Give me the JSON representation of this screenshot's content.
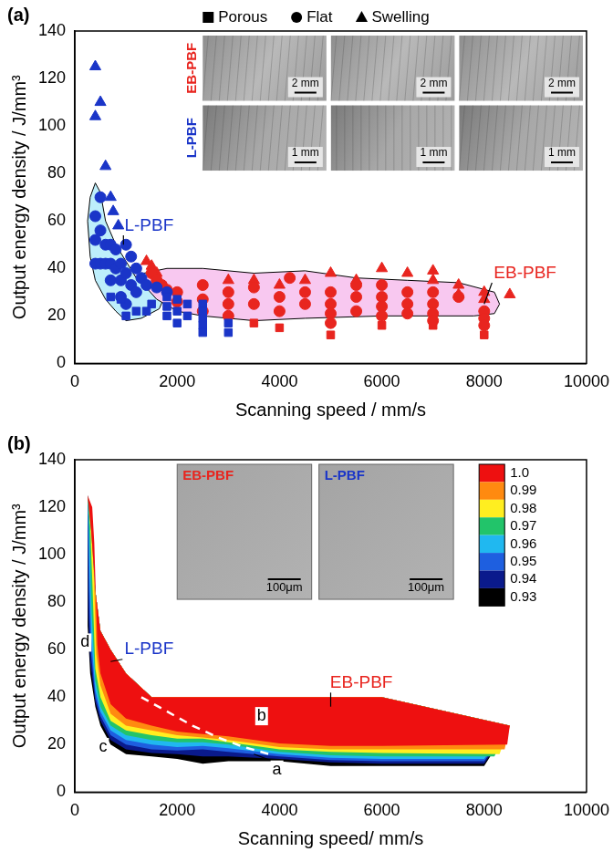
{
  "chart_data": [
    {
      "type": "scatter",
      "panel_label": "(a)",
      "x_label": "Scanning speed / mm/s",
      "y_label": "Output energy density / J/mm³",
      "xlim": [
        0,
        10000
      ],
      "xticks": [
        0,
        2000,
        4000,
        6000,
        8000,
        10000
      ],
      "ylim": [
        0,
        140
      ],
      "yticks": [
        0,
        20,
        40,
        60,
        80,
        100,
        120,
        140
      ],
      "grid": false,
      "legend": "top right",
      "series": [
        {
          "name": "Porous",
          "marker": "square",
          "color": "#1a35c8",
          "x": [
            700,
            900,
            1000,
            1200,
            1400,
            1500,
            1800,
            1800,
            1800,
            2000,
            2000,
            2000,
            2200,
            2200,
            2500,
            2500,
            2500,
            2500,
            2500,
            3000,
            3000
          ],
          "y": [
            28,
            27,
            20,
            22,
            22,
            25,
            28,
            24,
            20,
            27,
            22,
            17,
            25,
            20,
            25,
            22,
            19,
            16,
            13,
            17,
            13
          ]
        },
        {
          "name": "Flat",
          "marker": "circle",
          "color": "#1a35c8",
          "x": [
            400,
            400,
            400,
            500,
            500,
            500,
            600,
            600,
            700,
            700,
            700,
            800,
            800,
            900,
            900,
            900,
            1000,
            1000,
            1000,
            1100,
            1100,
            1200,
            1200,
            1300,
            1400,
            1600,
            1800
          ],
          "y": [
            62,
            52,
            42,
            70,
            56,
            42,
            50,
            42,
            50,
            42,
            35,
            48,
            40,
            42,
            35,
            28,
            50,
            38,
            25,
            45,
            33,
            40,
            30,
            36,
            33,
            32,
            30
          ]
        },
        {
          "name": "Swelling",
          "marker": "triangle",
          "color": "#1a35c8",
          "x": [
            400,
            400,
            500,
            600,
            700,
            750,
            850
          ],
          "y": [
            125,
            104,
            110,
            83,
            70,
            64,
            58
          ]
        },
        {
          "name": "Porous",
          "marker": "square",
          "color": "#e8251f",
          "x": [
            3500,
            4000,
            5000,
            6000,
            7000,
            8000
          ],
          "y": [
            17,
            15,
            12,
            16,
            16,
            12
          ]
        },
        {
          "name": "Flat",
          "marker": "circle",
          "color": "#e8251f",
          "x": [
            1500,
            1600,
            1700,
            1800,
            2000,
            2000,
            2500,
            2500,
            2500,
            3000,
            3000,
            3000,
            3500,
            3500,
            4000,
            4000,
            4200,
            4500,
            4500,
            5000,
            5000,
            5000,
            5000,
            5500,
            5500,
            5500,
            6000,
            6000,
            6000,
            6000,
            6500,
            6500,
            6500,
            7000,
            7000,
            7000,
            7000,
            7500,
            8000,
            8000,
            8000
          ],
          "y": [
            38,
            35,
            33,
            31,
            30,
            26,
            33,
            27,
            22,
            30,
            25,
            20,
            32,
            25,
            28,
            22,
            36,
            30,
            25,
            30,
            25,
            21,
            17,
            33,
            28,
            22,
            33,
            28,
            24,
            20,
            30,
            25,
            21,
            30,
            25,
            21,
            18,
            28,
            22,
            19,
            16
          ]
        },
        {
          "name": "Swelling",
          "marker": "triangle",
          "color": "#e8251f",
          "x": [
            1400,
            1500,
            1600,
            3000,
            3500,
            4000,
            4500,
            5000,
            5500,
            6000,
            6500,
            7000,
            7000,
            7500,
            7500,
            8000,
            8000,
            8500
          ],
          "y": [
            43,
            41,
            38,
            35,
            35,
            33,
            35,
            38,
            35,
            40,
            38,
            39,
            35,
            33,
            29,
            30,
            27,
            29
          ]
        }
      ],
      "regions": [
        {
          "name": "L-PBF",
          "color": "#bdeefb",
          "x": [
            250,
            300,
            400,
            500,
            600,
            800,
            1000,
            1200,
            1500,
            1750,
            1650,
            1300,
            1000,
            800,
            600,
            400,
            300
          ],
          "y": [
            60,
            70,
            76,
            72,
            60,
            50,
            43,
            36,
            31,
            28,
            23,
            19,
            18,
            22,
            27,
            35,
            45
          ]
        },
        {
          "name": "EB-PBF",
          "color": "#f8c8f0",
          "x": [
            1350,
            1800,
            2500,
            3500,
            4500,
            5500,
            6500,
            7500,
            8200,
            8300,
            8200,
            7800,
            6000,
            4500,
            3500,
            2500,
            2000,
            1600,
            1350
          ],
          "y": [
            38,
            40,
            40,
            38,
            39,
            36,
            35,
            34,
            30,
            25,
            21,
            20,
            20,
            19,
            18,
            20,
            22,
            27,
            33
          ]
        }
      ],
      "annotations": [
        {
          "text": "L-PBF",
          "color": "#1a35c8",
          "x": 1450,
          "y": 58,
          "point_to": [
            950,
            50
          ]
        },
        {
          "text": "EB-PBF",
          "color": "#e8251f",
          "x": 8800,
          "y": 38,
          "point_to": [
            8000,
            25
          ]
        }
      ],
      "photos": [
        {
          "label": "EB-PBF",
          "color": "#e8251f",
          "scale_bars": [
            "2 mm",
            "2 mm",
            "2 mm"
          ]
        },
        {
          "label": "L-PBF",
          "color": "#1a35c8",
          "scale_bars": [
            "1 mm",
            "1 mm",
            "1 mm"
          ]
        }
      ]
    },
    {
      "type": "contour",
      "panel_label": "(b)",
      "x_label": "Scanning speed/ mm/s",
      "y_label": "Output energy density / J/mm³",
      "xlim": [
        0,
        10000
      ],
      "xticks": [
        0,
        2000,
        4000,
        6000,
        8000,
        10000
      ],
      "ylim": [
        0,
        140
      ],
      "yticks": [
        0,
        20,
        40,
        60,
        80,
        100,
        120,
        140
      ],
      "grid": false,
      "domain_top": {
        "x": [
          250,
          320,
          400,
          500,
          700,
          1000,
          1500,
          6000,
          8500
        ],
        "y": [
          125,
          110,
          85,
          68,
          60,
          50,
          40,
          40,
          28
        ]
      },
      "contours": [
        {
          "level": 0.93,
          "color": "#000000",
          "x": [
            8000,
            6000,
            5000,
            4000,
            3000,
            2500,
            2000,
            1500,
            1000,
            700,
            500,
            400,
            300,
            250
          ],
          "y": [
            11,
            11,
            11,
            13,
            13,
            12,
            14,
            15,
            16,
            20,
            28,
            36,
            50,
            70
          ]
        },
        {
          "level": 0.94,
          "color": "#0a1a8c",
          "x": [
            8000,
            6000,
            5000,
            4000,
            3000,
            2500,
            2000,
            1500,
            1000,
            700,
            500,
            400,
            300,
            260
          ],
          "y": [
            12,
            12,
            12.5,
            14,
            15,
            15,
            16,
            16.5,
            18,
            22,
            30,
            38,
            55,
            75
          ]
        },
        {
          "level": 0.95,
          "color": "#1e5fe0",
          "x": [
            8000,
            6000,
            5000,
            4000,
            3000,
            2500,
            2000,
            1500,
            1000,
            700,
            500,
            400,
            310,
            270
          ],
          "y": [
            13,
            13,
            13.5,
            15,
            17,
            18,
            17.5,
            18,
            20,
            24,
            32,
            40,
            60,
            85
          ]
        },
        {
          "level": 0.96,
          "color": "#20b8f0",
          "x": [
            8000,
            6000,
            5000,
            4000,
            3000,
            2500,
            2000,
            1500,
            1000,
            700,
            500,
            400,
            320,
            280
          ],
          "y": [
            14,
            14,
            14.5,
            16,
            18.5,
            19.5,
            19,
            20,
            22,
            26,
            34,
            43,
            65,
            98
          ]
        },
        {
          "level": 0.97,
          "color": "#22c46a",
          "x": [
            8200,
            6000,
            5000,
            4000,
            3000,
            2500,
            2000,
            1500,
            1000,
            700,
            500,
            400,
            330,
            290
          ],
          "y": [
            15,
            15,
            15.5,
            17,
            20,
            21,
            21,
            22,
            24,
            28,
            36,
            47,
            75,
            105
          ]
        },
        {
          "level": 0.98,
          "color": "#ffee20",
          "x": [
            8300,
            6000,
            5000,
            4000,
            3000,
            2500,
            2000,
            1500,
            1000,
            700,
            500,
            400,
            340,
            300
          ],
          "y": [
            16,
            16.5,
            17,
            18,
            21,
            22.5,
            22.5,
            24,
            26,
            30,
            40,
            52,
            90,
            112
          ]
        },
        {
          "level": 0.99,
          "color": "#ff8a10",
          "x": [
            8400,
            6000,
            5000,
            4000,
            3000,
            2500,
            2000,
            1500,
            1000,
            700,
            500,
            420,
            360,
            320
          ],
          "y": [
            18,
            18,
            18,
            19,
            22,
            23,
            24,
            26,
            28,
            33,
            45,
            58,
            100,
            117
          ]
        },
        {
          "level": 1,
          "color": "#ee1010",
          "x": [
            8450,
            6000,
            5000,
            4000,
            3000,
            2500,
            2000,
            1500,
            1000,
            700,
            500,
            440,
            380,
            340
          ],
          "y": [
            20,
            19.5,
            19.5,
            20.5,
            23.5,
            24.5,
            25.5,
            28,
            31,
            37,
            50,
            62,
            105,
            120
          ]
        }
      ],
      "colorbar_ticks": [
        {
          "value": 1,
          "label": "1.0"
        },
        0.99,
        0.98,
        0.97,
        0.96,
        0.95,
        0.94,
        0.93
      ],
      "boundary": {
        "x": [
          1300,
          1800,
          2300,
          2800,
          3300,
          3800
        ],
        "y": [
          40,
          34,
          28,
          23,
          19,
          16
        ],
        "color": "#ffffff",
        "line_style": "dashed"
      },
      "annotations": [
        {
          "text": "L-PBF",
          "color": "#1a35c8",
          "x": 1450,
          "y": 60,
          "point_to": [
            700,
            55
          ]
        },
        {
          "text": "EB-PBF",
          "color": "#e8251f",
          "x": 5600,
          "y": 46,
          "point_to": [
            5000,
            36
          ]
        },
        {
          "text": "a",
          "x": 3950,
          "y": 9.5,
          "point_to": [
            3500,
            16
          ]
        },
        {
          "text": "b",
          "x": 3650,
          "y": 32
        },
        {
          "text": "c",
          "x": 550,
          "y": 19
        },
        {
          "text": "d",
          "x": 200,
          "y": 63
        }
      ],
      "images": [
        {
          "label": "EB-PBF",
          "color": "#e8251f",
          "scale_bar": "100μm"
        },
        {
          "label": "L-PBF",
          "color": "#1a35c8",
          "scale_bar": "100μm"
        }
      ]
    }
  ]
}
